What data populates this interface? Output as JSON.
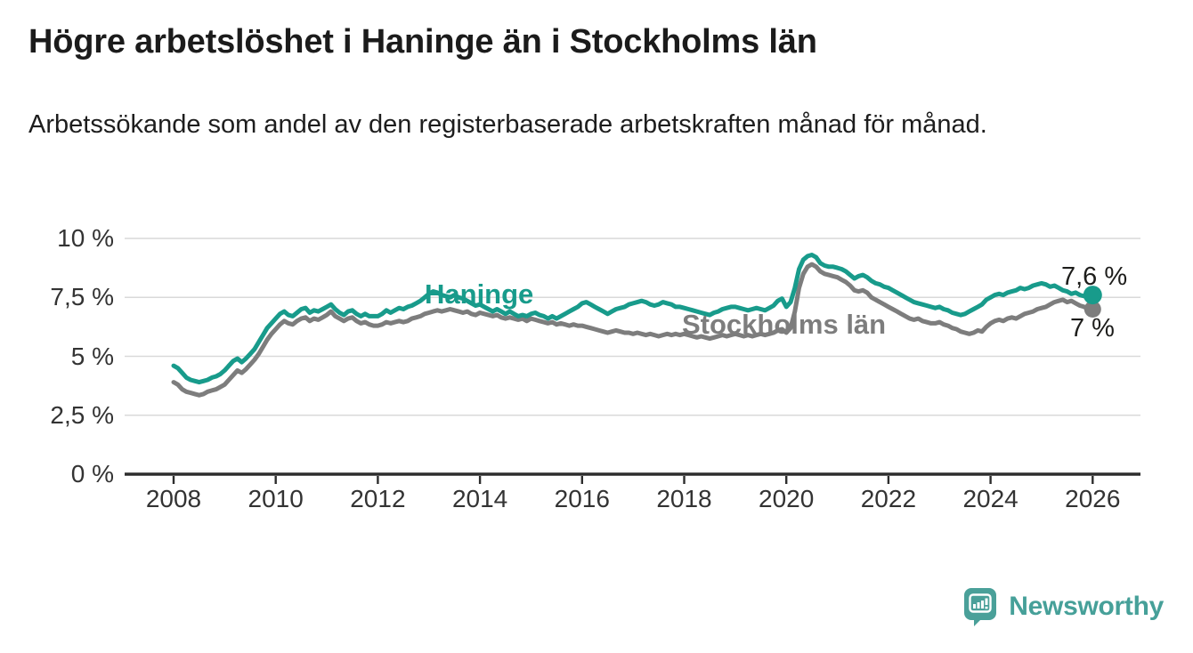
{
  "header": {
    "title": "Högre arbetslöshet i Haninge än i Stockholms län",
    "subtitle": "Arbetssökande som andel av den registerbaserade arbetskraften månad för månad."
  },
  "footer": {
    "brand": "Newsworthy",
    "brand_color": "#46a099"
  },
  "chart_data": {
    "type": "line",
    "title": "Högre arbetslöshet i Haninge än i Stockholms län",
    "subtitle": "Arbetssökande som andel av den registerbaserade arbetskraften månad för månad.",
    "xlabel": "",
    "ylabel": "",
    "x_unit": "month",
    "x_range": [
      "2008-01",
      "2026-01"
    ],
    "points_per_year": 12,
    "ylim": [
      0,
      10
    ],
    "grid": true,
    "legend_position": "inline-labels",
    "yticks": [
      {
        "value": 0,
        "label": "0 %"
      },
      {
        "value": 2.5,
        "label": "2,5 %"
      },
      {
        "value": 5,
        "label": "5 %"
      },
      {
        "value": 7.5,
        "label": "7,5 %"
      },
      {
        "value": 10,
        "label": "10 %"
      }
    ],
    "xticks": [
      {
        "year": 2008,
        "label": "2008"
      },
      {
        "year": 2010,
        "label": "2010"
      },
      {
        "year": 2012,
        "label": "2012"
      },
      {
        "year": 2014,
        "label": "2014"
      },
      {
        "year": 2016,
        "label": "2016"
      },
      {
        "year": 2018,
        "label": "2018"
      },
      {
        "year": 2020,
        "label": "2020"
      },
      {
        "year": 2022,
        "label": "2022"
      },
      {
        "year": 2024,
        "label": "2024"
      },
      {
        "year": 2026,
        "label": "2026"
      }
    ],
    "series": [
      {
        "name": "Haninge",
        "color": "#189b8b",
        "end_label": "7,6 %",
        "end_value": 7.6,
        "values": [
          4.6,
          4.5,
          4.3,
          4.1,
          4.0,
          3.95,
          3.9,
          3.95,
          4.0,
          4.1,
          4.15,
          4.25,
          4.4,
          4.6,
          4.8,
          4.9,
          4.75,
          4.9,
          5.1,
          5.3,
          5.6,
          5.9,
          6.2,
          6.4,
          6.6,
          6.8,
          6.9,
          6.75,
          6.7,
          6.85,
          7.0,
          7.05,
          6.85,
          6.95,
          6.9,
          7.0,
          7.1,
          7.2,
          7.0,
          6.85,
          6.75,
          6.9,
          6.95,
          6.8,
          6.7,
          6.8,
          6.7,
          6.7,
          6.7,
          6.8,
          6.95,
          6.85,
          6.95,
          7.05,
          7.0,
          7.1,
          7.15,
          7.25,
          7.35,
          7.5,
          7.65,
          7.75,
          7.7,
          7.6,
          7.55,
          7.5,
          7.6,
          7.5,
          7.45,
          7.35,
          7.25,
          7.15,
          7.2,
          7.1,
          7.0,
          6.9,
          7.0,
          6.9,
          6.8,
          6.9,
          6.8,
          6.7,
          6.75,
          6.7,
          6.8,
          6.85,
          6.75,
          6.7,
          6.6,
          6.7,
          6.6,
          6.7,
          6.8,
          6.9,
          7.0,
          7.1,
          7.25,
          7.3,
          7.2,
          7.1,
          7.0,
          6.9,
          6.8,
          6.9,
          7.0,
          7.05,
          7.1,
          7.2,
          7.25,
          7.3,
          7.35,
          7.3,
          7.2,
          7.15,
          7.2,
          7.3,
          7.25,
          7.2,
          7.1,
          7.1,
          7.05,
          7.0,
          6.95,
          6.9,
          6.85,
          6.8,
          6.75,
          6.85,
          6.9,
          7.0,
          7.05,
          7.1,
          7.1,
          7.05,
          7.0,
          6.95,
          7.0,
          7.05,
          7.0,
          6.95,
          7.05,
          7.15,
          7.35,
          7.45,
          7.1,
          7.3,
          7.9,
          8.7,
          9.1,
          9.25,
          9.3,
          9.2,
          8.95,
          8.85,
          8.8,
          8.8,
          8.75,
          8.7,
          8.6,
          8.45,
          8.3,
          8.4,
          8.45,
          8.35,
          8.2,
          8.1,
          8.05,
          7.95,
          7.9,
          7.8,
          7.7,
          7.6,
          7.5,
          7.4,
          7.3,
          7.25,
          7.2,
          7.15,
          7.1,
          7.05,
          7.1,
          7.0,
          6.95,
          6.85,
          6.8,
          6.75,
          6.8,
          6.9,
          7.0,
          7.1,
          7.2,
          7.4,
          7.5,
          7.6,
          7.65,
          7.6,
          7.7,
          7.75,
          7.8,
          7.9,
          7.85,
          7.9,
          8.0,
          8.05,
          8.1,
          8.05,
          7.95,
          8.0,
          7.9,
          7.8,
          7.75,
          7.65,
          7.7,
          7.6,
          7.55,
          7.65,
          7.6
        ]
      },
      {
        "name": "Stockholms län",
        "color": "#7d7d7d",
        "end_label": "7 %",
        "end_value": 7.0,
        "values": [
          3.9,
          3.8,
          3.6,
          3.5,
          3.45,
          3.4,
          3.35,
          3.4,
          3.5,
          3.55,
          3.6,
          3.7,
          3.8,
          4.0,
          4.2,
          4.4,
          4.3,
          4.45,
          4.65,
          4.85,
          5.1,
          5.4,
          5.7,
          5.95,
          6.15,
          6.35,
          6.5,
          6.4,
          6.35,
          6.5,
          6.6,
          6.65,
          6.5,
          6.6,
          6.55,
          6.65,
          6.75,
          6.9,
          6.7,
          6.6,
          6.5,
          6.6,
          6.65,
          6.5,
          6.4,
          6.45,
          6.35,
          6.3,
          6.3,
          6.35,
          6.45,
          6.4,
          6.45,
          6.5,
          6.45,
          6.5,
          6.6,
          6.65,
          6.7,
          6.8,
          6.85,
          6.9,
          6.95,
          6.9,
          6.95,
          7.0,
          6.95,
          6.9,
          6.85,
          6.9,
          6.8,
          6.75,
          6.85,
          6.8,
          6.75,
          6.7,
          6.75,
          6.65,
          6.6,
          6.65,
          6.6,
          6.55,
          6.6,
          6.5,
          6.6,
          6.55,
          6.5,
          6.45,
          6.4,
          6.45,
          6.35,
          6.4,
          6.35,
          6.3,
          6.35,
          6.3,
          6.3,
          6.25,
          6.2,
          6.15,
          6.1,
          6.05,
          6.0,
          6.05,
          6.1,
          6.05,
          6.0,
          6.0,
          5.95,
          6.0,
          5.95,
          5.9,
          5.95,
          5.9,
          5.85,
          5.9,
          5.95,
          5.9,
          5.95,
          5.9,
          5.95,
          5.9,
          5.85,
          5.8,
          5.85,
          5.8,
          5.75,
          5.8,
          5.85,
          5.9,
          5.85,
          5.9,
          5.95,
          5.9,
          5.85,
          5.9,
          5.85,
          5.9,
          5.95,
          5.9,
          5.95,
          6.0,
          6.1,
          6.15,
          6.0,
          6.2,
          6.9,
          7.9,
          8.5,
          8.8,
          8.9,
          8.8,
          8.6,
          8.5,
          8.45,
          8.4,
          8.35,
          8.25,
          8.15,
          8.0,
          7.8,
          7.75,
          7.8,
          7.7,
          7.5,
          7.4,
          7.3,
          7.2,
          7.1,
          7.0,
          6.9,
          6.8,
          6.7,
          6.6,
          6.55,
          6.6,
          6.5,
          6.45,
          6.4,
          6.4,
          6.45,
          6.35,
          6.3,
          6.2,
          6.15,
          6.05,
          6.0,
          5.95,
          6.0,
          6.1,
          6.05,
          6.25,
          6.4,
          6.5,
          6.55,
          6.5,
          6.6,
          6.65,
          6.6,
          6.7,
          6.8,
          6.85,
          6.9,
          7.0,
          7.05,
          7.1,
          7.2,
          7.3,
          7.35,
          7.4,
          7.3,
          7.35,
          7.25,
          7.15,
          7.1,
          7.0,
          7.0
        ]
      }
    ]
  }
}
